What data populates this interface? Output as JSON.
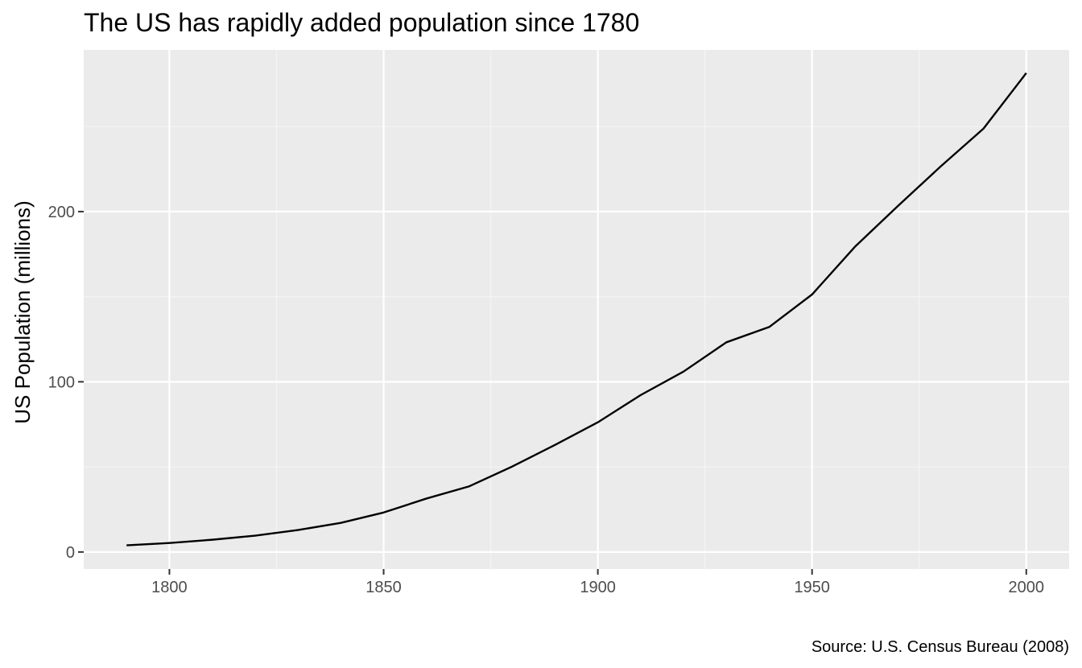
{
  "chart_data": {
    "type": "line",
    "title": "The US has rapidly added population since 1780",
    "xlabel": "",
    "ylabel": "US Population (millions)",
    "caption": "Source: U.S. Census Bureau (2008)",
    "x": [
      1790,
      1800,
      1810,
      1820,
      1830,
      1840,
      1850,
      1860,
      1870,
      1880,
      1890,
      1900,
      1910,
      1920,
      1930,
      1940,
      1950,
      1960,
      1970,
      1980,
      1990,
      2000
    ],
    "series": [
      {
        "values": [
          3.9,
          5.3,
          7.2,
          9.6,
          12.9,
          17.1,
          23.2,
          31.4,
          38.6,
          50.2,
          62.9,
          76.2,
          92.2,
          106.0,
          123.2,
          132.2,
          151.3,
          179.3,
          203.2,
          226.5,
          248.7,
          281.4
        ]
      }
    ],
    "xlim": [
      1780,
      2010
    ],
    "ylim": [
      -10,
      295
    ],
    "xticks": [
      1800,
      1850,
      1900,
      1950,
      2000
    ],
    "xtick_labels": [
      "1800",
      "1850",
      "1900",
      "1950",
      "2000"
    ],
    "yticks": [
      0,
      100,
      200
    ],
    "ytick_labels": [
      "0",
      "100",
      "200"
    ],
    "grid": true,
    "legend": "none",
    "colors": {
      "panel_background": "#ebebeb",
      "grid_major": "#ffffff",
      "grid_minor": "#f5f5f5",
      "line": "#000000",
      "tick_label": "#4d4d4d",
      "tick_mark": "#333333"
    }
  }
}
